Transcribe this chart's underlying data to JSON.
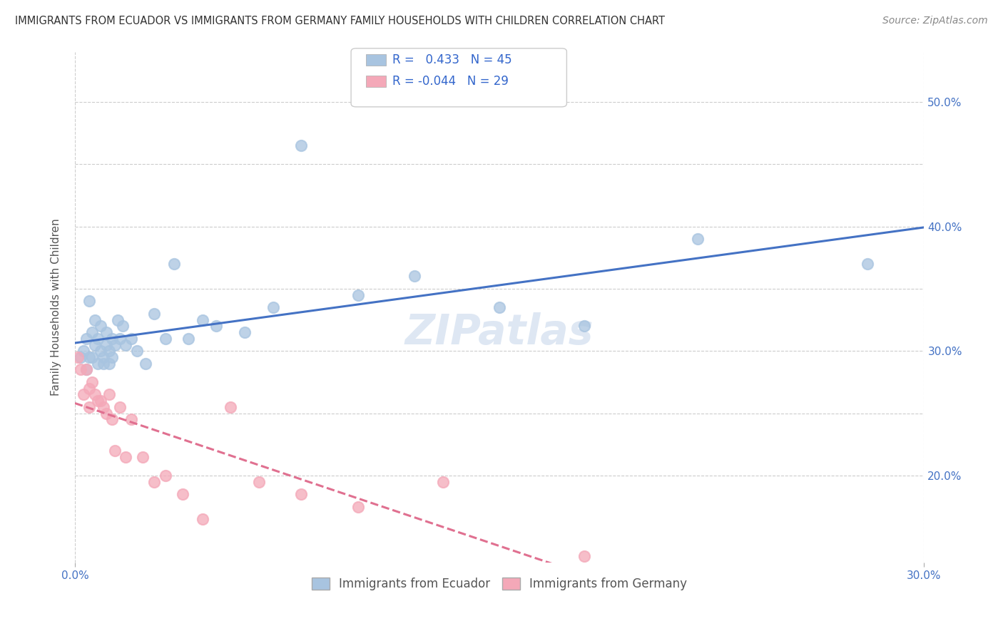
{
  "title": "IMMIGRANTS FROM ECUADOR VS IMMIGRANTS FROM GERMANY FAMILY HOUSEHOLDS WITH CHILDREN CORRELATION CHART",
  "source": "Source: ZipAtlas.com",
  "ylabel": "Family Households with Children",
  "r_ecuador": 0.433,
  "n_ecuador": 45,
  "r_germany": -0.044,
  "n_germany": 29,
  "ecuador_color": "#a8c4e0",
  "germany_color": "#f4a8b8",
  "ecuador_line_color": "#4472c4",
  "germany_line_color": "#e07090",
  "watermark": "ZIPatlas",
  "xlim": [
    0.0,
    0.3
  ],
  "ylim": [
    0.13,
    0.54
  ],
  "x_ticks": [
    0.0,
    0.3
  ],
  "y_ticks_right": [
    0.2,
    0.3,
    0.4,
    0.5
  ],
  "ecuador_x": [
    0.002,
    0.003,
    0.004,
    0.004,
    0.005,
    0.005,
    0.006,
    0.006,
    0.007,
    0.007,
    0.008,
    0.008,
    0.009,
    0.009,
    0.01,
    0.01,
    0.011,
    0.011,
    0.012,
    0.012,
    0.013,
    0.013,
    0.014,
    0.015,
    0.016,
    0.017,
    0.018,
    0.02,
    0.022,
    0.025,
    0.028,
    0.032,
    0.035,
    0.04,
    0.045,
    0.05,
    0.06,
    0.07,
    0.08,
    0.1,
    0.12,
    0.15,
    0.18,
    0.22,
    0.28
  ],
  "ecuador_y": [
    0.295,
    0.3,
    0.31,
    0.285,
    0.34,
    0.295,
    0.295,
    0.315,
    0.325,
    0.305,
    0.29,
    0.31,
    0.3,
    0.32,
    0.295,
    0.29,
    0.315,
    0.305,
    0.3,
    0.29,
    0.31,
    0.295,
    0.305,
    0.325,
    0.31,
    0.32,
    0.305,
    0.31,
    0.3,
    0.29,
    0.33,
    0.31,
    0.37,
    0.31,
    0.325,
    0.32,
    0.315,
    0.335,
    0.465,
    0.345,
    0.36,
    0.335,
    0.32,
    0.39,
    0.37
  ],
  "germany_x": [
    0.001,
    0.002,
    0.003,
    0.004,
    0.005,
    0.005,
    0.006,
    0.007,
    0.008,
    0.009,
    0.01,
    0.011,
    0.012,
    0.013,
    0.014,
    0.016,
    0.018,
    0.02,
    0.024,
    0.028,
    0.032,
    0.038,
    0.045,
    0.055,
    0.065,
    0.08,
    0.1,
    0.13,
    0.18
  ],
  "germany_y": [
    0.295,
    0.285,
    0.265,
    0.285,
    0.27,
    0.255,
    0.275,
    0.265,
    0.26,
    0.26,
    0.255,
    0.25,
    0.265,
    0.245,
    0.22,
    0.255,
    0.215,
    0.245,
    0.215,
    0.195,
    0.2,
    0.185,
    0.165,
    0.255,
    0.195,
    0.185,
    0.175,
    0.195,
    0.135
  ]
}
